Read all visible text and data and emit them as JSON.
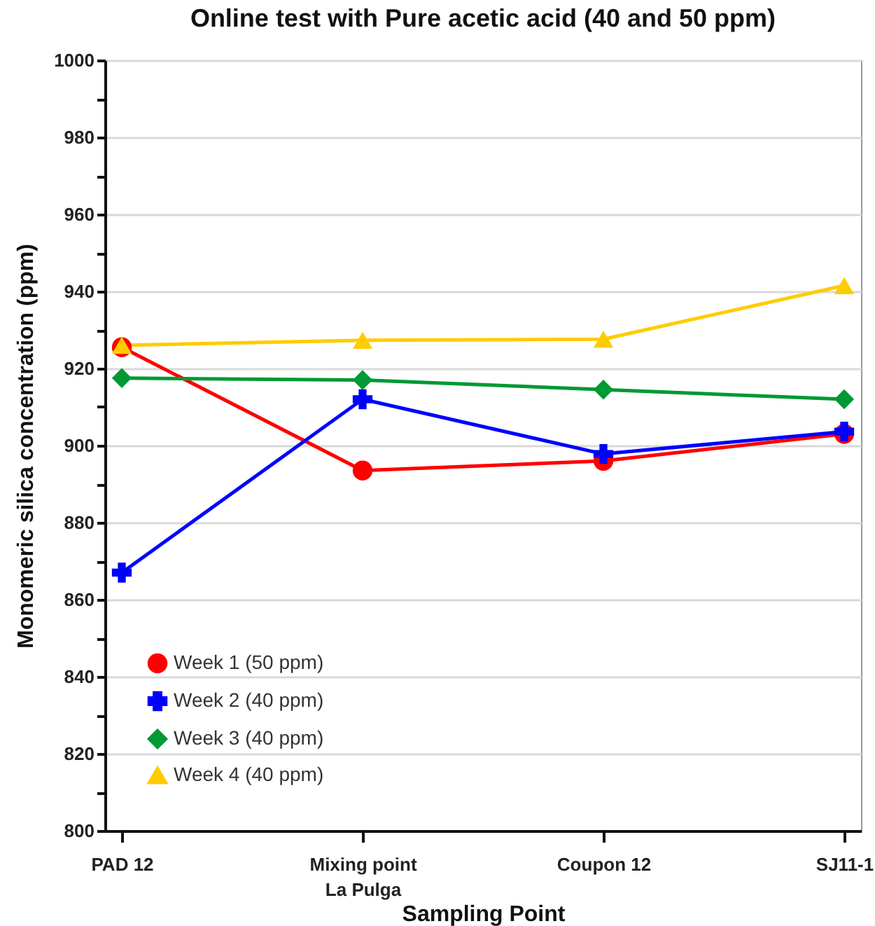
{
  "chart_data": {
    "type": "line",
    "title": "Online test with Pure acetic acid (40 and 50 ppm)",
    "xlabel": "Sampling Point",
    "ylabel": "Monomeric silica concentration (ppm)",
    "categories": [
      "PAD 12",
      "Mixing point\nLa Pulga",
      "Coupon  12",
      "SJ11-1"
    ],
    "series": [
      {
        "name": "Week 1 (50 ppm)",
        "color": "#ff0000",
        "marker": "circle",
        "values": [
          925.5,
          893.5,
          896,
          903
        ]
      },
      {
        "name": "Week 2 (40 ppm)",
        "color": "#0000ff",
        "marker": "cross",
        "values": [
          867,
          912,
          897.8,
          903.6
        ]
      },
      {
        "name": "Week 3 (40 ppm)",
        "color": "#009933",
        "marker": "diamond",
        "values": [
          917.5,
          917,
          914.5,
          912
        ]
      },
      {
        "name": "Week 4 (40 ppm)",
        "color": "#ffcc00",
        "marker": "triangle",
        "values": [
          926,
          927.3,
          927.6,
          941.5
        ]
      }
    ],
    "ylim": [
      800,
      1000
    ],
    "yticks": [
      800,
      {
        "value": 810,
        "label": null
      },
      820,
      {
        "value": 830,
        "label": null
      },
      840,
      {
        "value": 850,
        "label": null
      },
      860,
      {
        "value": 870,
        "label": null
      },
      880,
      {
        "value": 890,
        "label": null
      },
      900,
      {
        "value": 910,
        "label": null
      },
      920,
      {
        "value": 930,
        "label": null
      },
      940,
      {
        "value": 950,
        "label": null
      },
      960,
      {
        "value": 970,
        "label": null
      },
      980,
      {
        "value": 990,
        "label": null
      },
      1000
    ],
    "grid": "y",
    "legend": "bottom left",
    "line_style": "solid"
  }
}
